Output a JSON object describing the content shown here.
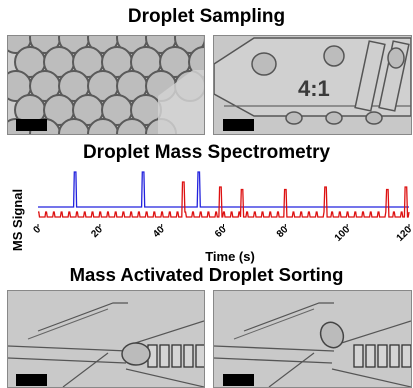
{
  "headings": {
    "sampling": "Droplet Sampling",
    "spectrometry": "Droplet Mass Spectrometry",
    "sorting": "Mass Activated Droplet Sorting"
  },
  "sampling_panel": {
    "ratio_label": "4:1"
  },
  "chart_data": {
    "type": "line",
    "title": "Droplet Mass Spectrometry",
    "xlabel": "Time (s)",
    "ylabel": "MS Signal",
    "xlim": [
      0,
      120
    ],
    "x_ticks": [
      0,
      20,
      40,
      60,
      80,
      100,
      120
    ],
    "y_ticks": [],
    "grid": false,
    "legend": "none",
    "series": [
      {
        "color": "#2222dd",
        "baseline": 0.3,
        "peaks": [
          {
            "x": 12,
            "y": 1.0
          },
          {
            "x": 34,
            "y": 1.0
          },
          {
            "x": 52,
            "y": 1.0
          }
        ]
      },
      {
        "color": "#dd1111",
        "baseline": 0.1,
        "peaks": [
          {
            "x": 47,
            "y": 0.8
          },
          {
            "x": 59,
            "y": 0.7
          },
          {
            "x": 66,
            "y": 0.65
          },
          {
            "x": 80,
            "y": 0.65
          },
          {
            "x": 93,
            "y": 0.7
          },
          {
            "x": 113,
            "y": 0.65
          },
          {
            "x": 119,
            "y": 0.7
          }
        ]
      }
    ],
    "small_red_spikes_every_s": 2.5
  },
  "colors": {
    "blue_trace": "#2222dd",
    "red_trace": "#dd1111",
    "micrograph_bg": "#c9c9c9"
  }
}
